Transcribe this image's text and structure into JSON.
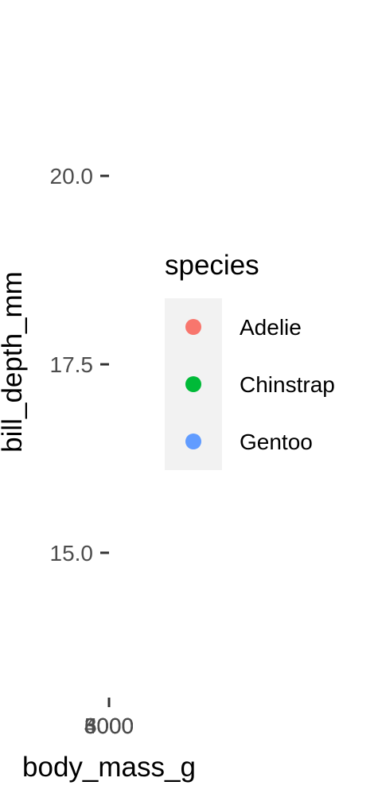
{
  "chart_data": {
    "type": "scatter",
    "xlabel": "body_mass_g",
    "ylabel": "bill_depth_mm",
    "x_ticks": [
      "3000",
      "4000",
      "5000",
      "6000"
    ],
    "y_ticks": [
      {
        "value": 15.0,
        "label": "15.0"
      },
      {
        "value": 17.5,
        "label": "17.5"
      },
      {
        "value": 20.0,
        "label": "20.0"
      }
    ],
    "ylim": [
      13.1,
      21.7
    ],
    "grid": false,
    "legend": {
      "title": "species",
      "placement": "right",
      "entries": [
        {
          "label": "Adelie",
          "color": "#F8766D"
        },
        {
          "label": "Chinstrap",
          "color": "#00BA38"
        },
        {
          "label": "Gentoo",
          "color": "#619CFF"
        }
      ]
    },
    "series": []
  }
}
